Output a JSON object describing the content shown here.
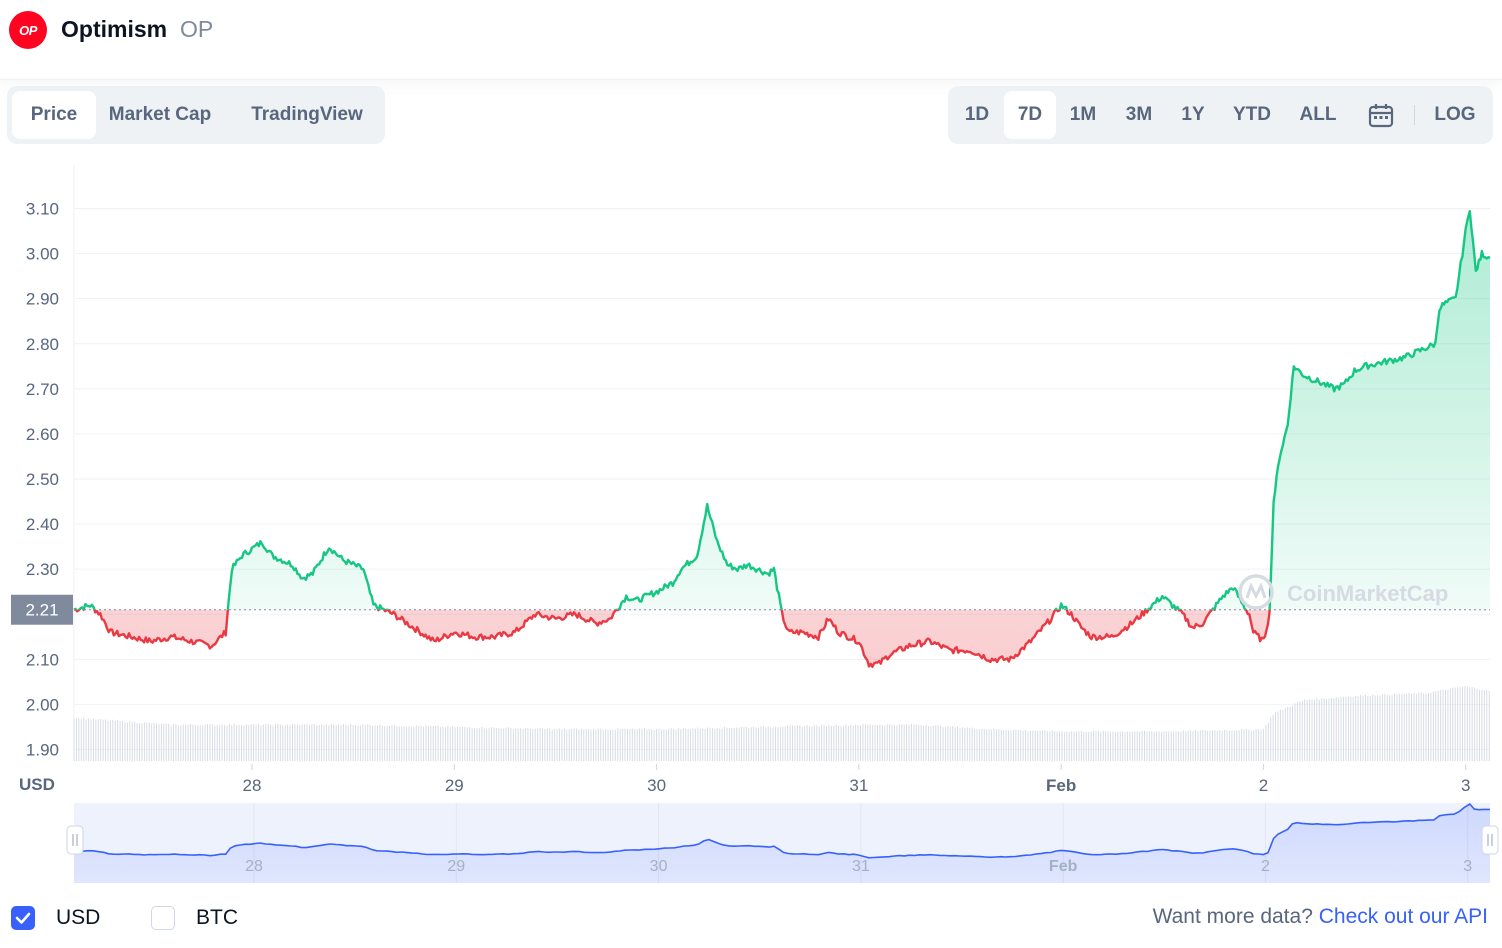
{
  "coin": {
    "logo_text": "OP",
    "name": "Optimism",
    "symbol": "OP"
  },
  "tabs": [
    "Price",
    "Market Cap",
    "TradingView"
  ],
  "active_tab": "Price",
  "ranges": [
    "1D",
    "7D",
    "1M",
    "3M",
    "1Y",
    "YTD",
    "ALL"
  ],
  "active_range": "7D",
  "log_label": "LOG",
  "currency": {
    "usd_label": "USD",
    "btc_label": "BTC",
    "usd_checked": true,
    "btc_checked": false
  },
  "api": {
    "prompt": "Want more data?",
    "link": "Check out our API"
  },
  "watermark": "CoinMarketCap",
  "colors": {
    "up": "#16c784",
    "down": "#ea3943",
    "accent": "#3861fb",
    "brand": "#ff0420"
  },
  "chart_data": {
    "type": "line",
    "currency_label": "USD",
    "baseline_value": 2.21,
    "baseline_label": "2.21",
    "y_ticks": [
      1.9,
      2.0,
      2.1,
      2.2,
      2.3,
      2.4,
      2.5,
      2.6,
      2.7,
      2.8,
      2.9,
      3.0,
      3.1
    ],
    "y_tick_labels": [
      "1.90",
      "2.00",
      "2.10",
      "",
      "2.30",
      "2.40",
      "2.50",
      "2.60",
      "2.70",
      "2.80",
      "2.90",
      "3.00",
      "3.10"
    ],
    "ylim": [
      1.87,
      3.13
    ],
    "x_ticks": [
      {
        "label": "28",
        "day": 1,
        "bold": false
      },
      {
        "label": "29",
        "day": 2,
        "bold": false
      },
      {
        "label": "30",
        "day": 3,
        "bold": false
      },
      {
        "label": "31",
        "day": 4,
        "bold": false
      },
      {
        "label": "Feb",
        "day": 5,
        "bold": true
      },
      {
        "label": "2",
        "day": 6,
        "bold": false
      },
      {
        "label": "3",
        "day": 7,
        "bold": false
      }
    ],
    "xlim": [
      0.12,
      7.12
    ],
    "series": [
      {
        "price_points": [
          [
            0.12,
            2.21
          ],
          [
            0.2,
            2.22
          ],
          [
            0.25,
            2.2
          ],
          [
            0.3,
            2.16
          ],
          [
            0.4,
            2.15
          ],
          [
            0.5,
            2.14
          ],
          [
            0.6,
            2.15
          ],
          [
            0.7,
            2.14
          ],
          [
            0.8,
            2.13
          ],
          [
            0.87,
            2.16
          ],
          [
            0.9,
            2.3
          ],
          [
            0.95,
            2.33
          ],
          [
            1.05,
            2.36
          ],
          [
            1.1,
            2.33
          ],
          [
            1.2,
            2.31
          ],
          [
            1.25,
            2.28
          ],
          [
            1.3,
            2.29
          ],
          [
            1.38,
            2.35
          ],
          [
            1.45,
            2.32
          ],
          [
            1.5,
            2.31
          ],
          [
            1.55,
            2.3
          ],
          [
            1.6,
            2.22
          ],
          [
            1.7,
            2.2
          ],
          [
            1.8,
            2.17
          ],
          [
            1.9,
            2.14
          ],
          [
            2.0,
            2.16
          ],
          [
            2.1,
            2.15
          ],
          [
            2.2,
            2.15
          ],
          [
            2.3,
            2.16
          ],
          [
            2.4,
            2.2
          ],
          [
            2.5,
            2.19
          ],
          [
            2.6,
            2.2
          ],
          [
            2.7,
            2.18
          ],
          [
            2.77,
            2.19
          ],
          [
            2.85,
            2.24
          ],
          [
            2.9,
            2.23
          ],
          [
            2.95,
            2.24
          ],
          [
            3.0,
            2.25
          ],
          [
            3.08,
            2.27
          ],
          [
            3.12,
            2.3
          ],
          [
            3.2,
            2.33
          ],
          [
            3.25,
            2.44
          ],
          [
            3.3,
            2.36
          ],
          [
            3.35,
            2.31
          ],
          [
            3.4,
            2.3
          ],
          [
            3.45,
            2.31
          ],
          [
            3.5,
            2.3
          ],
          [
            3.55,
            2.29
          ],
          [
            3.58,
            2.3
          ],
          [
            3.62,
            2.2
          ],
          [
            3.65,
            2.16
          ],
          [
            3.72,
            2.16
          ],
          [
            3.8,
            2.15
          ],
          [
            3.85,
            2.19
          ],
          [
            3.9,
            2.16
          ],
          [
            4.0,
            2.14
          ],
          [
            4.05,
            2.09
          ],
          [
            4.1,
            2.09
          ],
          [
            4.15,
            2.11
          ],
          [
            4.25,
            2.13
          ],
          [
            4.35,
            2.14
          ],
          [
            4.45,
            2.12
          ],
          [
            4.55,
            2.12
          ],
          [
            4.65,
            2.1
          ],
          [
            4.75,
            2.1
          ],
          [
            4.85,
            2.14
          ],
          [
            4.95,
            2.19
          ],
          [
            5.0,
            2.22
          ],
          [
            5.05,
            2.2
          ],
          [
            5.1,
            2.17
          ],
          [
            5.15,
            2.15
          ],
          [
            5.25,
            2.15
          ],
          [
            5.35,
            2.18
          ],
          [
            5.4,
            2.2
          ],
          [
            5.5,
            2.24
          ],
          [
            5.55,
            2.22
          ],
          [
            5.6,
            2.2
          ],
          [
            5.65,
            2.17
          ],
          [
            5.7,
            2.18
          ],
          [
            5.8,
            2.24
          ],
          [
            5.85,
            2.26
          ],
          [
            5.9,
            2.22
          ],
          [
            5.93,
            2.2
          ],
          [
            5.95,
            2.16
          ],
          [
            6.0,
            2.14
          ],
          [
            6.03,
            2.2
          ],
          [
            6.05,
            2.45
          ],
          [
            6.08,
            2.55
          ],
          [
            6.12,
            2.62
          ],
          [
            6.15,
            2.75
          ],
          [
            6.2,
            2.73
          ],
          [
            6.3,
            2.71
          ],
          [
            6.35,
            2.7
          ],
          [
            6.4,
            2.71
          ],
          [
            6.45,
            2.74
          ],
          [
            6.5,
            2.75
          ],
          [
            6.6,
            2.76
          ],
          [
            6.7,
            2.77
          ],
          [
            6.8,
            2.79
          ],
          [
            6.85,
            2.8
          ],
          [
            6.87,
            2.88
          ],
          [
            6.9,
            2.89
          ],
          [
            6.95,
            2.9
          ],
          [
            7.0,
            3.05
          ],
          [
            7.02,
            3.1
          ],
          [
            7.05,
            2.96
          ],
          [
            7.08,
            3.0
          ],
          [
            7.12,
            2.99
          ]
        ],
        "volume_levels": [
          [
            0.12,
            1.97
          ],
          [
            0.6,
            1.955
          ],
          [
            1.0,
            1.955
          ],
          [
            1.5,
            1.955
          ],
          [
            2.0,
            1.95
          ],
          [
            2.5,
            1.945
          ],
          [
            3.0,
            1.945
          ],
          [
            3.5,
            1.95
          ],
          [
            4.0,
            1.955
          ],
          [
            4.3,
            1.955
          ],
          [
            4.65,
            1.945
          ],
          [
            5.0,
            1.94
          ],
          [
            5.5,
            1.94
          ],
          [
            6.0,
            1.945
          ],
          [
            6.05,
            1.98
          ],
          [
            6.2,
            2.01
          ],
          [
            6.5,
            2.02
          ],
          [
            6.8,
            2.025
          ],
          [
            7.0,
            2.04
          ],
          [
            7.12,
            2.03
          ]
        ]
      }
    ]
  }
}
